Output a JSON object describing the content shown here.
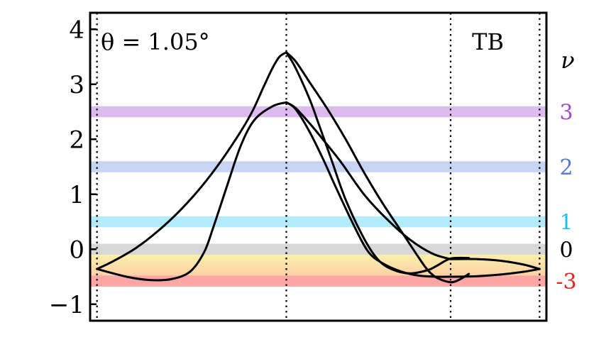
{
  "chart_data": {
    "type": "line",
    "annotation": "θ = 1.05°",
    "tag": "TB",
    "ylim": [
      -1.3,
      4.3
    ],
    "yticks": [
      {
        "value": 4,
        "label": "4"
      },
      {
        "value": 3,
        "label": "3"
      },
      {
        "value": 2,
        "label": "2"
      },
      {
        "value": 1,
        "label": "1"
      },
      {
        "value": 0,
        "label": "0"
      },
      {
        "value": -1,
        "label": "−1"
      }
    ],
    "xlim": [
      0,
      1
    ],
    "k_points": [
      0.015,
      0.43,
      0.79,
      0.985
    ],
    "filling_axis_title": "ν",
    "fillings": [
      {
        "label": "3",
        "energy": 2.5,
        "color": "#dcbcee",
        "label_color": "#a24bc4"
      },
      {
        "label": "2",
        "energy": 1.5,
        "color": "#c7d4f4",
        "label_color": "#5577d6"
      },
      {
        "label": "1",
        "energy": 0.5,
        "color": "#b4ebfb",
        "label_color": "#18c1ee"
      },
      {
        "label": "0",
        "energy": 0.0,
        "color": "#d8d8d8",
        "label_color": "#000000"
      },
      {
        "label": "-3",
        "energy": -0.58,
        "color": "#fca6a6",
        "label_color": "#ee1f1f"
      }
    ],
    "gradient_band": {
      "from": -0.1,
      "to": -0.5,
      "top_color": "#fcefaa",
      "bottom_color": "#fcd0a6"
    },
    "series": [
      {
        "points": [
          [
            0.015,
            -0.36
          ],
          [
            0.05,
            -0.22
          ],
          [
            0.1,
            0.02
          ],
          [
            0.15,
            0.34
          ],
          [
            0.2,
            0.73
          ],
          [
            0.25,
            1.2
          ],
          [
            0.3,
            1.76
          ],
          [
            0.35,
            2.42
          ],
          [
            0.38,
            2.95
          ],
          [
            0.4,
            3.3
          ],
          [
            0.415,
            3.5
          ],
          [
            0.43,
            3.58
          ]
        ]
      },
      {
        "points": [
          [
            0.015,
            -0.36
          ],
          [
            0.08,
            -0.5
          ],
          [
            0.13,
            -0.56
          ],
          [
            0.18,
            -0.54
          ],
          [
            0.22,
            -0.4
          ],
          [
            0.25,
            -0.05
          ],
          [
            0.27,
            0.4
          ],
          [
            0.3,
            1.15
          ],
          [
            0.33,
            1.88
          ],
          [
            0.36,
            2.35
          ],
          [
            0.4,
            2.6
          ],
          [
            0.43,
            2.67
          ]
        ]
      },
      {
        "points": [
          [
            0.43,
            3.58
          ],
          [
            0.45,
            3.42
          ],
          [
            0.48,
            3.05
          ],
          [
            0.52,
            2.55
          ],
          [
            0.56,
            2.0
          ],
          [
            0.6,
            1.4
          ],
          [
            0.64,
            0.85
          ],
          [
            0.68,
            0.35
          ],
          [
            0.7,
            0.1
          ],
          [
            0.72,
            -0.15
          ],
          [
            0.74,
            -0.38
          ],
          [
            0.76,
            -0.52
          ],
          [
            0.79,
            -0.6
          ],
          [
            0.81,
            -0.55
          ],
          [
            0.83,
            -0.45
          ]
        ]
      },
      {
        "points": [
          [
            0.43,
            3.58
          ],
          [
            0.45,
            3.3
          ],
          [
            0.48,
            2.75
          ],
          [
            0.5,
            2.3
          ],
          [
            0.53,
            1.6
          ],
          [
            0.56,
            0.9
          ],
          [
            0.6,
            0.2
          ],
          [
            0.63,
            -0.18
          ],
          [
            0.66,
            -0.36
          ],
          [
            0.7,
            -0.44
          ],
          [
            0.74,
            -0.38
          ],
          [
            0.76,
            -0.3
          ],
          [
            0.79,
            -0.17
          ],
          [
            0.83,
            -0.16
          ]
        ]
      },
      {
        "points": [
          [
            0.43,
            2.67
          ],
          [
            0.45,
            2.57
          ],
          [
            0.48,
            2.3
          ],
          [
            0.51,
            2.0
          ],
          [
            0.55,
            1.58
          ],
          [
            0.6,
            1.0
          ],
          [
            0.65,
            0.55
          ],
          [
            0.7,
            0.18
          ],
          [
            0.75,
            -0.08
          ],
          [
            0.79,
            -0.18
          ]
        ]
      },
      {
        "points": [
          [
            0.43,
            2.67
          ],
          [
            0.45,
            2.55
          ],
          [
            0.48,
            2.15
          ],
          [
            0.51,
            1.65
          ],
          [
            0.54,
            1.1
          ],
          [
            0.58,
            0.4
          ],
          [
            0.61,
            -0.05
          ],
          [
            0.64,
            -0.25
          ],
          [
            0.68,
            -0.4
          ],
          [
            0.72,
            -0.48
          ],
          [
            0.76,
            -0.5
          ],
          [
            0.79,
            -0.5
          ]
        ]
      },
      {
        "points": [
          [
            0.79,
            -0.18
          ],
          [
            0.85,
            -0.18
          ],
          [
            0.9,
            -0.21
          ],
          [
            0.95,
            -0.28
          ],
          [
            0.985,
            -0.36
          ]
        ]
      },
      {
        "points": [
          [
            0.79,
            -0.5
          ],
          [
            0.85,
            -0.49
          ],
          [
            0.9,
            -0.46
          ],
          [
            0.95,
            -0.41
          ],
          [
            0.985,
            -0.36
          ]
        ]
      }
    ]
  }
}
